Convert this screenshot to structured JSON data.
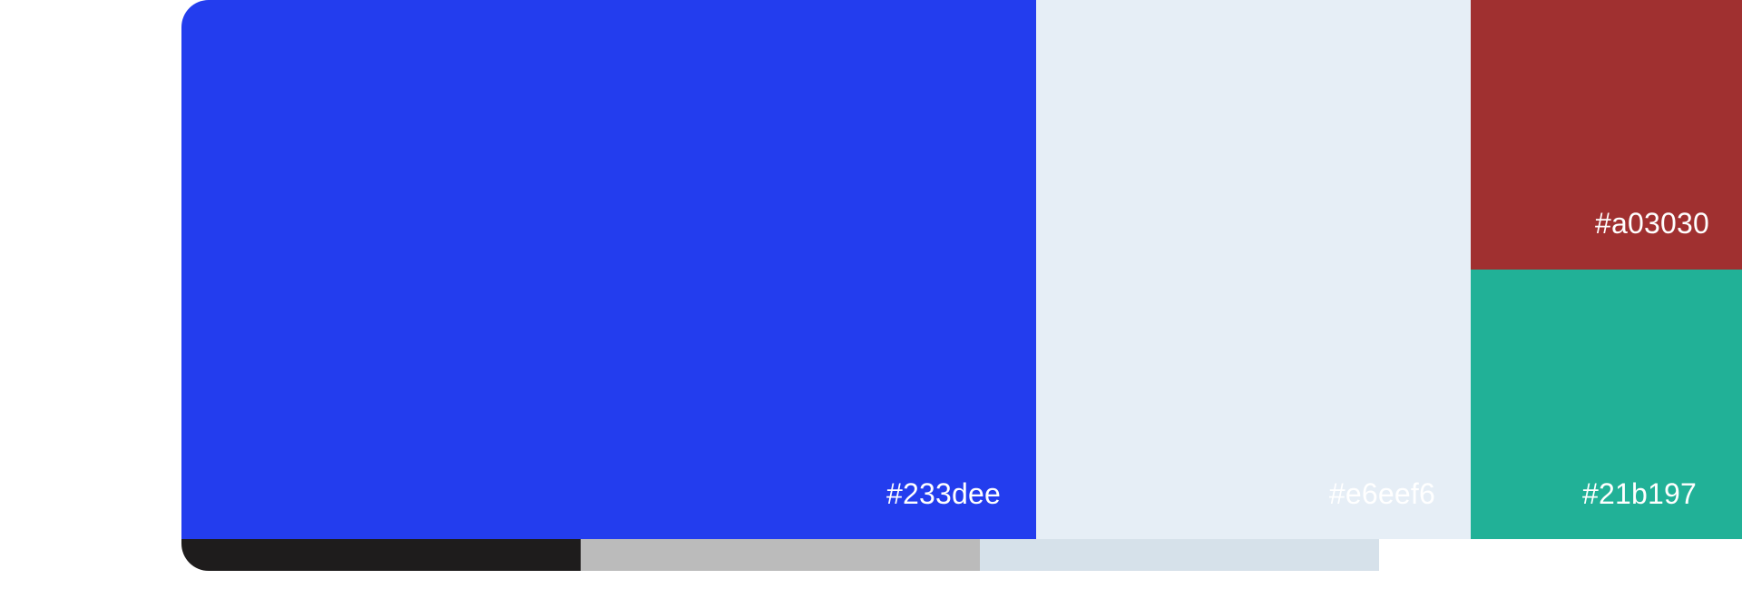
{
  "palette": {
    "swatches": [
      {
        "hex": "#233dee",
        "color": "#233dee",
        "label_color": "#ffffff"
      },
      {
        "hex": "#e6eef6",
        "color": "#e6eef6",
        "label_color": "#ffffff"
      },
      {
        "hex": "#a03030",
        "color": "#a03030",
        "label_color": "#ffffff"
      },
      {
        "hex": "#21b197",
        "color": "#21b197",
        "label_color": "#ffffff"
      }
    ],
    "shades": [
      {
        "color": "#1e1c1c"
      },
      {
        "color": "#bbbbbb"
      },
      {
        "color": "#d6e1ea"
      }
    ]
  }
}
